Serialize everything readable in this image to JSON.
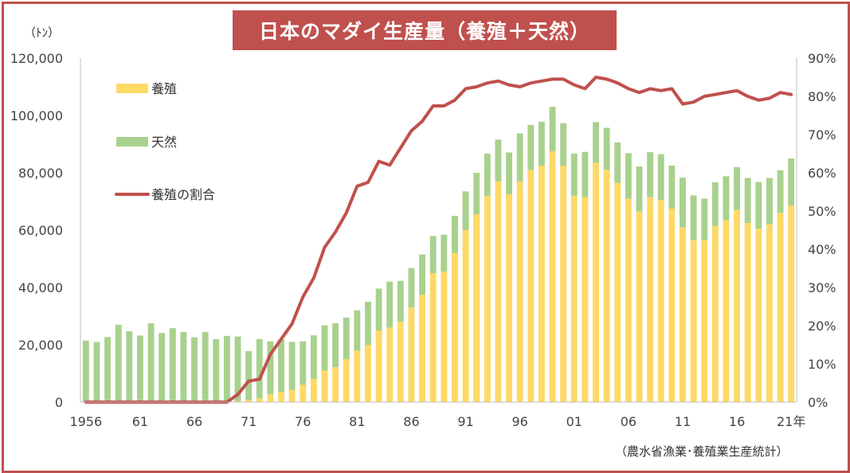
{
  "title": "日本のマダイ生産量（養殖＋天然）",
  "unit_label": "（ﾄﾝ）",
  "source": "（農水省漁業･養殖業生産統計）",
  "colors": {
    "aquaculture": "#ffd966",
    "wild": "#a9d18e",
    "ratio": "#c0504d",
    "frame": "#c0504d",
    "title_bg": "#c0504d"
  },
  "legend": [
    {
      "key": "aquaculture",
      "label": "養殖",
      "kind": "box"
    },
    {
      "key": "wild",
      "label": "天然",
      "kind": "box"
    },
    {
      "key": "ratio",
      "label": "養殖の割合",
      "kind": "line"
    }
  ],
  "chart_data": {
    "type": "bar",
    "stacked": true,
    "x": [
      1956,
      1957,
      1958,
      1959,
      1960,
      1961,
      1962,
      1963,
      1964,
      1965,
      1966,
      1967,
      1968,
      1969,
      1970,
      1971,
      1972,
      1973,
      1974,
      1975,
      1976,
      1977,
      1978,
      1979,
      1980,
      1981,
      1982,
      1983,
      1984,
      1985,
      1986,
      1987,
      1988,
      1989,
      1990,
      1991,
      1992,
      1993,
      1994,
      1995,
      1996,
      1997,
      1998,
      1999,
      2000,
      2001,
      2002,
      2003,
      2004,
      2005,
      2006,
      2007,
      2008,
      2009,
      2010,
      2011,
      2012,
      2013,
      2014,
      2015,
      2016,
      2017,
      2018,
      2019,
      2020,
      2021
    ],
    "x_tick_labels": [
      {
        "year": 1956,
        "label": "1956"
      },
      {
        "year": 1961,
        "label": "61"
      },
      {
        "year": 1966,
        "label": "66"
      },
      {
        "year": 1971,
        "label": "71"
      },
      {
        "year": 1976,
        "label": "76"
      },
      {
        "year": 1981,
        "label": "81"
      },
      {
        "year": 1986,
        "label": "86"
      },
      {
        "year": 1991,
        "label": "91"
      },
      {
        "year": 1996,
        "label": "96"
      },
      {
        "year": 2001,
        "label": "01"
      },
      {
        "year": 2006,
        "label": "06"
      },
      {
        "year": 2011,
        "label": "11"
      },
      {
        "year": 2016,
        "label": "16"
      },
      {
        "year": 2021,
        "label": "21年"
      }
    ],
    "series": [
      {
        "name": "養殖",
        "key": "aquaculture",
        "values": [
          0,
          0,
          0,
          0,
          0,
          0,
          0,
          0,
          0,
          0,
          0,
          0,
          0,
          0,
          400,
          800,
          1300,
          2700,
          3600,
          4300,
          6000,
          8100,
          11000,
          12200,
          15000,
          18000,
          20000,
          25000,
          26000,
          28000,
          33000,
          37500,
          45000,
          45500,
          52000,
          60000,
          65500,
          72000,
          77000,
          72500,
          77000,
          81000,
          82500,
          87500,
          82500,
          72000,
          71500,
          83500,
          81000,
          76500,
          71000,
          66500,
          71500,
          70500,
          67500,
          61000,
          56500,
          56500,
          61500,
          63500,
          67000,
          62500,
          60500,
          62000,
          66000,
          68500
        ]
      },
      {
        "name": "天然",
        "key": "wild",
        "values": [
          21500,
          21000,
          22700,
          27000,
          24700,
          23200,
          27500,
          24100,
          25800,
          24500,
          22600,
          24500,
          22000,
          23100,
          22500,
          17000,
          20700,
          18500,
          18200,
          16700,
          15200,
          15200,
          15800,
          15300,
          14500,
          14000,
          15000,
          14600,
          16000,
          14300,
          13800,
          14000,
          13000,
          12900,
          13000,
          13500,
          14500,
          14700,
          14600,
          14600,
          16700,
          15700,
          15300,
          15500,
          14800,
          14700,
          15800,
          14200,
          14700,
          14100,
          15800,
          15700,
          15700,
          16000,
          15000,
          17300,
          15600,
          14500,
          15200,
          15300,
          15000,
          15700,
          16300,
          16200,
          14900,
          16500
        ]
      },
      {
        "name": "養殖の割合",
        "key": "ratio",
        "axis": "right",
        "values": [
          0,
          0,
          0,
          0,
          0,
          0,
          0,
          0,
          0,
          0,
          0,
          0,
          0,
          0,
          2.0,
          5.5,
          6.0,
          12.5,
          16.5,
          20.5,
          27.5,
          32.5,
          40.5,
          44.5,
          49.5,
          56.5,
          57.5,
          63.0,
          62.0,
          66.5,
          71.0,
          73.5,
          77.5,
          77.5,
          79.0,
          82.0,
          82.5,
          83.5,
          84.0,
          83.0,
          82.5,
          83.5,
          84.0,
          84.5,
          84.5,
          83.0,
          82.0,
          85.0,
          84.5,
          83.5,
          82.0,
          81.0,
          82.0,
          81.5,
          82.0,
          78.0,
          78.5,
          80.0,
          80.5,
          81.0,
          81.5,
          80.0,
          79.0,
          79.5,
          81.0,
          80.5
        ]
      }
    ],
    "y_left": {
      "min": 0,
      "max": 120000,
      "ticks": [
        "0",
        "20,000",
        "40,000",
        "60,000",
        "80,000",
        "100,000",
        "120,000"
      ]
    },
    "y_right": {
      "min": 0,
      "max": 90,
      "ticks": [
        "0%",
        "10%",
        "20%",
        "30%",
        "40%",
        "50%",
        "60%",
        "70%",
        "80%",
        "90%"
      ]
    },
    "grid": false
  }
}
